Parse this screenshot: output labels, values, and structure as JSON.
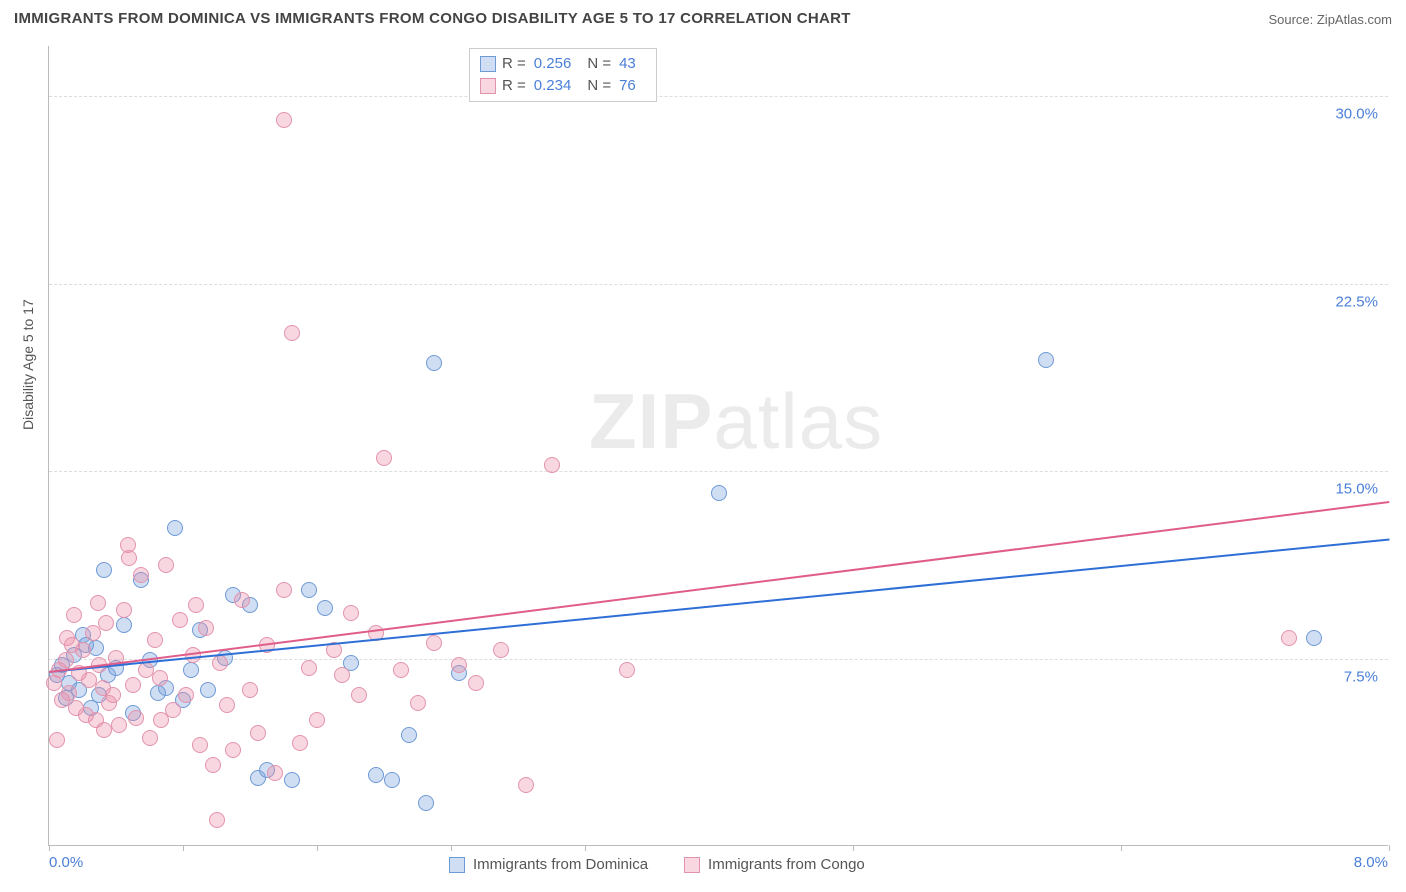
{
  "title": "IMMIGRANTS FROM DOMINICA VS IMMIGRANTS FROM CONGO DISABILITY AGE 5 TO 17 CORRELATION CHART",
  "source": "Source: ZipAtlas.com",
  "ylabel": "Disability Age 5 to 17",
  "watermark_a": "ZIP",
  "watermark_b": "atlas",
  "chart": {
    "type": "scatter",
    "background_color": "#ffffff",
    "grid_color": "#dddddd",
    "axis_color": "#bbbbbb",
    "tick_label_color": "#4a7fd8",
    "xlim": [
      0.0,
      8.0
    ],
    "ylim": [
      0.0,
      32.0
    ],
    "xticks": [
      0.0,
      0.8,
      1.6,
      2.4,
      3.2,
      4.8,
      6.4,
      8.0
    ],
    "xtick_labels": {
      "0": "0.0%",
      "7": "8.0%"
    },
    "yticks": [
      7.5,
      15.0,
      22.5,
      30.0
    ],
    "ytick_labels": [
      "7.5%",
      "15.0%",
      "22.5%",
      "30.0%"
    ],
    "point_radius": 8,
    "series": [
      {
        "name": "Immigrants from Dominica",
        "fill": "rgba(120,160,220,0.35)",
        "stroke": "#6e9ad6",
        "line_color": "#2e6fd6",
        "R": "0.256",
        "N": "43",
        "regression": {
          "x1": 0.0,
          "y1": 7.0,
          "x2": 8.0,
          "y2": 12.3
        },
        "points": [
          [
            0.05,
            6.8
          ],
          [
            0.08,
            7.2
          ],
          [
            0.1,
            5.9
          ],
          [
            0.12,
            6.5
          ],
          [
            0.15,
            7.6
          ],
          [
            0.18,
            6.2
          ],
          [
            0.2,
            8.4
          ],
          [
            0.25,
            5.5
          ],
          [
            0.28,
            7.9
          ],
          [
            0.3,
            6.0
          ],
          [
            0.35,
            6.8
          ],
          [
            0.4,
            7.1
          ],
          [
            0.45,
            8.8
          ],
          [
            0.5,
            5.3
          ],
          [
            0.55,
            10.6
          ],
          [
            0.6,
            7.4
          ],
          [
            0.65,
            6.1
          ],
          [
            0.75,
            12.7
          ],
          [
            0.8,
            5.8
          ],
          [
            0.85,
            7.0
          ],
          [
            0.95,
            6.2
          ],
          [
            1.05,
            7.5
          ],
          [
            1.1,
            10.0
          ],
          [
            1.2,
            9.6
          ],
          [
            1.25,
            2.7
          ],
          [
            1.3,
            3.0
          ],
          [
            1.45,
            2.6
          ],
          [
            1.55,
            10.2
          ],
          [
            1.65,
            9.5
          ],
          [
            1.8,
            7.3
          ],
          [
            1.95,
            2.8
          ],
          [
            2.05,
            2.6
          ],
          [
            2.15,
            4.4
          ],
          [
            2.25,
            1.7
          ],
          [
            2.3,
            19.3
          ],
          [
            2.45,
            6.9
          ],
          [
            4.0,
            14.1
          ],
          [
            5.95,
            19.4
          ],
          [
            7.55,
            8.3
          ],
          [
            0.22,
            8.0
          ],
          [
            0.33,
            11.0
          ],
          [
            0.7,
            6.3
          ],
          [
            0.9,
            8.6
          ]
        ]
      },
      {
        "name": "Immigrants from Congo",
        "fill": "rgba(235,140,165,0.35)",
        "stroke": "#e393ad",
        "line_color": "#e05d8a",
        "R": "0.234",
        "N": "76",
        "regression": {
          "x1": 0.0,
          "y1": 7.0,
          "x2": 8.0,
          "y2": 13.8
        },
        "points": [
          [
            0.03,
            6.5
          ],
          [
            0.06,
            7.0
          ],
          [
            0.08,
            5.8
          ],
          [
            0.1,
            7.4
          ],
          [
            0.12,
            6.1
          ],
          [
            0.14,
            8.0
          ],
          [
            0.16,
            5.5
          ],
          [
            0.18,
            6.9
          ],
          [
            0.2,
            7.8
          ],
          [
            0.22,
            5.2
          ],
          [
            0.24,
            6.6
          ],
          [
            0.26,
            8.5
          ],
          [
            0.28,
            5.0
          ],
          [
            0.3,
            7.2
          ],
          [
            0.32,
            6.3
          ],
          [
            0.34,
            8.9
          ],
          [
            0.36,
            5.7
          ],
          [
            0.38,
            6.0
          ],
          [
            0.4,
            7.5
          ],
          [
            0.42,
            4.8
          ],
          [
            0.45,
            9.4
          ],
          [
            0.48,
            11.5
          ],
          [
            0.5,
            6.4
          ],
          [
            0.52,
            5.1
          ],
          [
            0.55,
            10.8
          ],
          [
            0.58,
            7.0
          ],
          [
            0.6,
            4.3
          ],
          [
            0.63,
            8.2
          ],
          [
            0.66,
            6.7
          ],
          [
            0.7,
            11.2
          ],
          [
            0.74,
            5.4
          ],
          [
            0.78,
            9.0
          ],
          [
            0.82,
            6.0
          ],
          [
            0.86,
            7.6
          ],
          [
            0.9,
            4.0
          ],
          [
            0.94,
            8.7
          ],
          [
            0.98,
            3.2
          ],
          [
            1.02,
            7.3
          ],
          [
            1.06,
            5.6
          ],
          [
            1.1,
            3.8
          ],
          [
            1.15,
            9.8
          ],
          [
            1.2,
            6.2
          ],
          [
            1.25,
            4.5
          ],
          [
            1.3,
            8.0
          ],
          [
            1.35,
            2.9
          ],
          [
            1.4,
            10.2
          ],
          [
            1.45,
            20.5
          ],
          [
            1.4,
            29.0
          ],
          [
            1.55,
            7.1
          ],
          [
            1.6,
            5.0
          ],
          [
            1.7,
            7.8
          ],
          [
            1.8,
            9.3
          ],
          [
            1.85,
            6.0
          ],
          [
            1.95,
            8.5
          ],
          [
            2.0,
            15.5
          ],
          [
            2.1,
            7.0
          ],
          [
            2.2,
            5.7
          ],
          [
            2.3,
            8.1
          ],
          [
            2.45,
            7.2
          ],
          [
            2.55,
            6.5
          ],
          [
            2.7,
            7.8
          ],
          [
            2.85,
            2.4
          ],
          [
            3.0,
            15.2
          ],
          [
            3.45,
            7.0
          ],
          [
            7.4,
            8.3
          ],
          [
            0.05,
            4.2
          ],
          [
            0.15,
            9.2
          ],
          [
            0.33,
            4.6
          ],
          [
            0.47,
            12.0
          ],
          [
            0.67,
            5.0
          ],
          [
            0.88,
            9.6
          ],
          [
            1.0,
            1.0
          ],
          [
            1.5,
            4.1
          ],
          [
            1.75,
            6.8
          ],
          [
            0.11,
            8.3
          ],
          [
            0.29,
            9.7
          ]
        ]
      }
    ]
  },
  "legend_bottom": [
    {
      "label": "Immigrants from Dominica",
      "fill": "rgba(120,160,220,0.35)",
      "stroke": "#6e9ad6"
    },
    {
      "label": "Immigrants from Congo",
      "fill": "rgba(235,140,165,0.35)",
      "stroke": "#e393ad"
    }
  ]
}
